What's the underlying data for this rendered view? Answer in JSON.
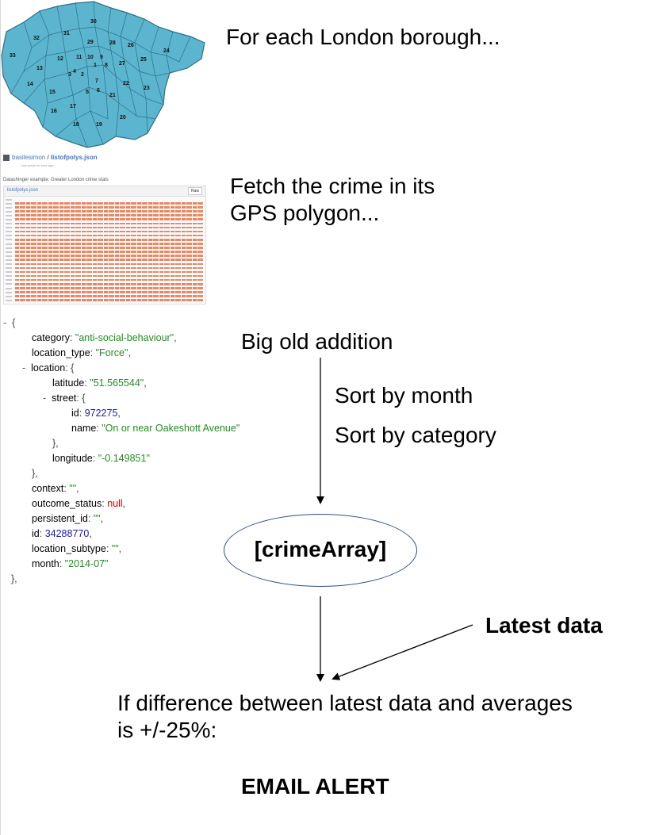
{
  "map": {
    "fill_color": "#5bb5cf",
    "border_color": "#2f6f86",
    "borough_numbers": [
      "1",
      "2",
      "3",
      "4",
      "5",
      "6",
      "7",
      "8",
      "9",
      "10",
      "11",
      "12",
      "13",
      "14",
      "15",
      "16",
      "17",
      "18",
      "19",
      "20",
      "21",
      "22",
      "23",
      "24",
      "25",
      "26",
      "27",
      "28",
      "29",
      "30",
      "31",
      "32",
      "33"
    ]
  },
  "gist": {
    "user": "basilesimon",
    "separator": " / ",
    "file": "listofpolys.json",
    "subtitle": "Last active an hour ago"
  },
  "code": {
    "title": "Datashinger example: Greater London crime stats",
    "file_label": "listofpolys.json",
    "raw_button": "Raw"
  },
  "json": {
    "open_brace": "{",
    "category_key": "category",
    "category_val": "\"anti-social-behaviour\"",
    "location_type_key": "location_type",
    "location_type_val": "\"Force\"",
    "location_key": "location",
    "latitude_key": "latitude",
    "latitude_val": "\"51.565544\"",
    "street_key": "street",
    "id_key": "id",
    "street_id_val": "972275",
    "name_key": "name",
    "name_val": "\"On or near Oakeshott Avenue\"",
    "longitude_key": "longitude",
    "longitude_val": "\"-0.149851\"",
    "context_key": "context",
    "empty_val": "\"\"",
    "outcome_key": "outcome_status",
    "null_val": "null",
    "persistent_key": "persistent_id",
    "crime_id_val": "34288770",
    "location_subtype_key": "location_subtype",
    "month_key": "month",
    "month_val": "\"2014-07\""
  },
  "steps": {
    "borough": "For each London borough...",
    "fetch_line1": "Fetch the crime in its",
    "fetch_line2": "GPS polygon...",
    "addition": "Big old addition",
    "sort_month": "Sort by month",
    "sort_category": "Sort by category",
    "crime_array": "[crimeArray]",
    "latest_data": "Latest data",
    "difference_line1": "If difference between latest data and averages",
    "difference_line2": "is +/-25%:",
    "email_alert": "EMAIL ALERT"
  },
  "colors": {
    "ellipse_border": "#2e4a8a",
    "json_string": "#228b22",
    "json_number": "#1a1aa6",
    "json_null": "#e00000"
  }
}
